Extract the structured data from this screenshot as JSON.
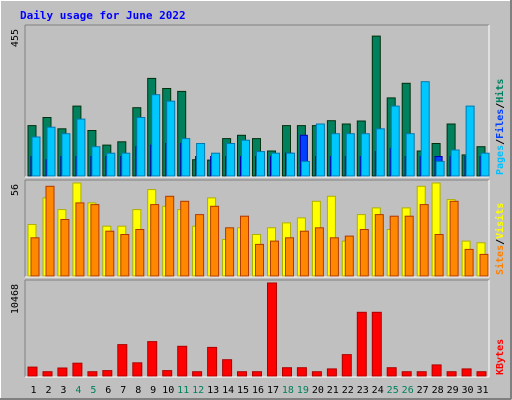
{
  "chart_data": [
    {
      "type": "bar",
      "title": "Daily usage for June 2022",
      "panel": "hits-files-pages",
      "ylabel_max": "455",
      "legend": [
        {
          "label": "Pages",
          "color": "#00c0ff"
        },
        {
          "label": "Files",
          "color": "#0040ff"
        },
        {
          "label": "Hits",
          "color": "#008060"
        }
      ],
      "categories": [
        "1",
        "2",
        "3",
        "4",
        "5",
        "6",
        "7",
        "8",
        "9",
        "10",
        "11",
        "12",
        "13",
        "14",
        "15",
        "16",
        "17",
        "18",
        "19",
        "20",
        "21",
        "22",
        "23",
        "24",
        "25",
        "26",
        "27",
        "28",
        "29",
        "30",
        "31"
      ],
      "ylim": [
        0,
        455
      ],
      "series": [
        {
          "name": "Hits",
          "color": "#00805c",
          "values": [
            155,
            180,
            145,
            215,
            140,
            95,
            105,
            210,
            300,
            269,
            260,
            50,
            49,
            115,
            125,
            115,
            77,
            155,
            155,
            155,
            170,
            160,
            169,
            430,
            240,
            285,
            77,
            100,
            160,
            65,
            90
          ]
        },
        {
          "name": "Files",
          "color": "#0040ff",
          "values": [
            60,
            50,
            60,
            60,
            60,
            60,
            60,
            90,
            95,
            100,
            100,
            60,
            60,
            60,
            60,
            60,
            60,
            70,
            125,
            60,
            60,
            60,
            60,
            75,
            85,
            60,
            60,
            60,
            60,
            60,
            60
          ]
        },
        {
          "name": "Pages",
          "color": "#00c8ff",
          "values": [
            120,
            150,
            130,
            175,
            90,
            70,
            70,
            180,
            250,
            230,
            115,
            100,
            70,
            100,
            110,
            75,
            70,
            70,
            45,
            160,
            130,
            130,
            130,
            145,
            215,
            130,
            290,
            45,
            80,
            215,
            70
          ]
        }
      ]
    },
    {
      "type": "bar",
      "panel": "visits-sites",
      "ylabel_max": "56",
      "legend": [
        {
          "label": "Sites",
          "color": "#ff8000"
        },
        {
          "label": "Visits",
          "color": "#ffff00"
        }
      ],
      "categories": [
        "1",
        "2",
        "3",
        "4",
        "5",
        "6",
        "7",
        "8",
        "9",
        "10",
        "11",
        "12",
        "13",
        "14",
        "15",
        "16",
        "17",
        "18",
        "19",
        "20",
        "21",
        "22",
        "23",
        "24",
        "25",
        "26",
        "27",
        "28",
        "29",
        "30",
        "31"
      ],
      "ylim": [
        0,
        56
      ],
      "series": [
        {
          "name": "Visits",
          "color": "#ffff00",
          "values": [
            31,
            47,
            40,
            56,
            44,
            30,
            30,
            40,
            52,
            42,
            40,
            30,
            47,
            22,
            29,
            25,
            29,
            32,
            35,
            45,
            48,
            21,
            37,
            41,
            28,
            41,
            54,
            56,
            46,
            21,
            20
          ]
        },
        {
          "name": "Sites",
          "color": "#ff8800",
          "values": [
            23,
            54,
            34,
            44,
            43,
            27,
            25,
            28,
            43,
            48,
            45,
            37,
            42,
            29,
            36,
            19,
            21,
            23,
            27,
            29,
            23,
            24,
            28,
            37,
            36,
            36,
            43,
            25,
            45,
            16,
            13
          ]
        }
      ]
    },
    {
      "type": "bar",
      "panel": "kbytes",
      "ylabel_max": "10468",
      "legend": [
        {
          "label": "KBytes",
          "color": "#ff0000"
        }
      ],
      "categories": [
        "1",
        "2",
        "3",
        "4",
        "5",
        "6",
        "7",
        "8",
        "9",
        "10",
        "11",
        "12",
        "13",
        "14",
        "15",
        "16",
        "17",
        "18",
        "19",
        "20",
        "21",
        "22",
        "23",
        "24",
        "25",
        "26",
        "27",
        "28",
        "29",
        "30",
        "31"
      ],
      "ylim": [
        0,
        10468
      ],
      "series": [
        {
          "name": "KBytes",
          "color": "#ff0000",
          "values": [
            1004,
            481,
            905,
            1439,
            481,
            608,
            3530,
            1485,
            3867,
            608,
            3348,
            482,
            3222,
            1833,
            480,
            481,
            10468,
            937,
            937,
            482,
            800,
            2404,
            7165,
            7165,
            937,
            481,
            481,
            1247,
            482,
            800,
            482
          ]
        }
      ]
    }
  ],
  "x_labels": {
    "days": [
      "1",
      "2",
      "3",
      "4",
      "5",
      "6",
      "7",
      "8",
      "9",
      "10",
      "11",
      "12",
      "13",
      "14",
      "15",
      "16",
      "17",
      "18",
      "19",
      "20",
      "21",
      "22",
      "23",
      "24",
      "25",
      "26",
      "27",
      "28",
      "29",
      "30",
      "31"
    ],
    "weekend_days": [
      "4",
      "5",
      "11",
      "12",
      "18",
      "19",
      "25",
      "26"
    ],
    "weekday_color": "#000000",
    "weekend_color": "#00805c"
  },
  "colors": {
    "background": "#c0c0c0",
    "plot_bg": "#c0c0c0",
    "title": "#0000ff"
  }
}
